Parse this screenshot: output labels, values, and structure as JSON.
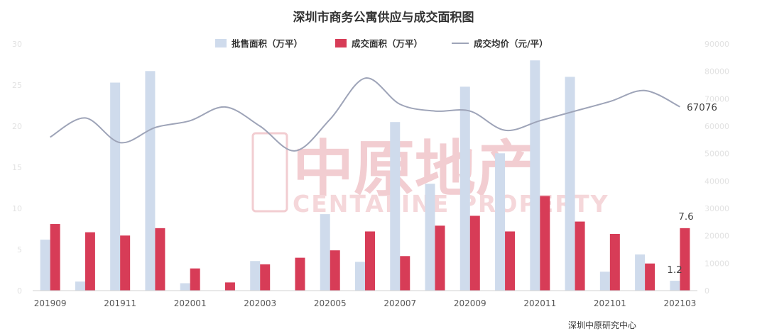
{
  "chart_data": {
    "type": "bar",
    "title": "深圳市商务公寓供应与成交面积图",
    "source": "深圳中原研究中心",
    "categories": [
      "201909",
      "201910",
      "201911",
      "201912",
      "202001",
      "202002",
      "202003",
      "202004",
      "202005",
      "202006",
      "202007",
      "202008",
      "202009",
      "202010",
      "202011",
      "202012",
      "202101",
      "202102",
      "202103"
    ],
    "x_tick_labels": [
      "201909",
      "",
      "201911",
      "",
      "202001",
      "",
      "202003",
      "",
      "202005",
      "",
      "202007",
      "",
      "202009",
      "",
      "202011",
      "",
      "202101",
      "",
      "202103"
    ],
    "series": [
      {
        "name": "批售面积（万平）",
        "kind": "bar",
        "axis": "left",
        "color": "#cfdbec",
        "values": [
          6.2,
          1.1,
          25.3,
          26.7,
          0.9,
          0,
          3.6,
          0,
          9.3,
          3.5,
          20.5,
          13.0,
          24.8,
          16.7,
          28.0,
          26.0,
          2.3,
          4.4,
          1.2
        ]
      },
      {
        "name": "成交面积（万平）",
        "kind": "bar",
        "axis": "left",
        "color": "#d73c57",
        "values": [
          8.1,
          7.1,
          6.7,
          7.6,
          2.7,
          1.0,
          3.2,
          4.0,
          4.9,
          7.2,
          4.2,
          7.9,
          9.1,
          7.2,
          11.5,
          8.4,
          6.9,
          3.3,
          7.6
        ]
      },
      {
        "name": "成交均价（元/平）",
        "kind": "line",
        "axis": "right",
        "color": "#9ea4b8",
        "values": [
          56000,
          63000,
          54000,
          59500,
          62000,
          67000,
          60000,
          51000,
          62500,
          77500,
          68000,
          65500,
          65500,
          58500,
          62000,
          65500,
          69000,
          73000,
          67076
        ]
      }
    ],
    "left_axis": {
      "ylim": [
        0,
        30
      ],
      "ticks": [
        "0",
        "5",
        "10",
        "15",
        "20",
        "25",
        "30"
      ]
    },
    "right_axis": {
      "ylim": [
        0,
        90000
      ],
      "ticks": [
        "0",
        "10000",
        "20000",
        "30000",
        "40000",
        "50000",
        "60000",
        "70000",
        "80000",
        "90000"
      ]
    },
    "annotations": [
      {
        "text": "67076",
        "series": "成交均价（元/平）",
        "index": 18
      },
      {
        "text": "7.6",
        "series": "成交面积（万平）",
        "index": 18
      },
      {
        "text": "1.2",
        "series": "批售面积（万平）",
        "index": 18
      }
    ],
    "watermark": {
      "chinese": "中原地产",
      "english": "CENTALINE PROPERTY"
    },
    "grid": false,
    "legend_position": "top-center"
  }
}
